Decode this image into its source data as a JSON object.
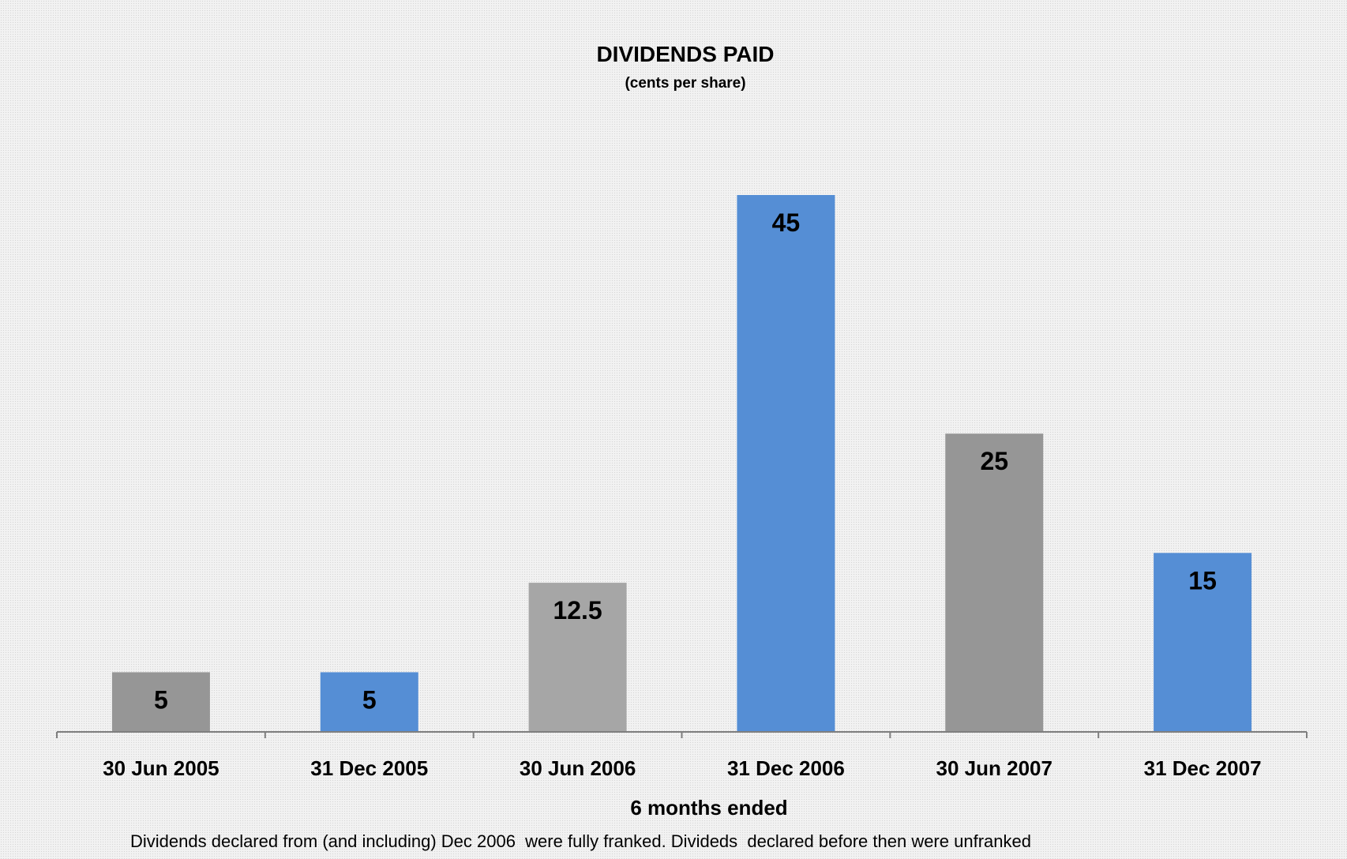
{
  "chart_data": {
    "type": "bar",
    "title": "DIVIDENDS PAID",
    "subtitle": "(cents per share)",
    "categories": [
      "30 Jun 2005",
      "31 Dec 2005",
      "30 Jun 2006",
      "31 Dec 2006",
      "30 Jun 2007",
      "31 Dec 2007"
    ],
    "values": [
      5,
      5,
      12.5,
      45,
      25,
      15
    ],
    "value_labels": [
      "5",
      "5",
      "12.5",
      "45",
      "25",
      "15"
    ],
    "bar_colors": [
      "#969696",
      "#558ed5",
      "#a6a6a6",
      "#558ed5",
      "#969696",
      "#558ed5"
    ],
    "xlabel": "6 months ended",
    "ylabel": "",
    "ylim": [
      0,
      45
    ],
    "grid": false,
    "legend": "none",
    "footnote": "Dividends declared from (and including) Dec 2006  were fully franked. Divideds  declared before then were unfranked"
  }
}
